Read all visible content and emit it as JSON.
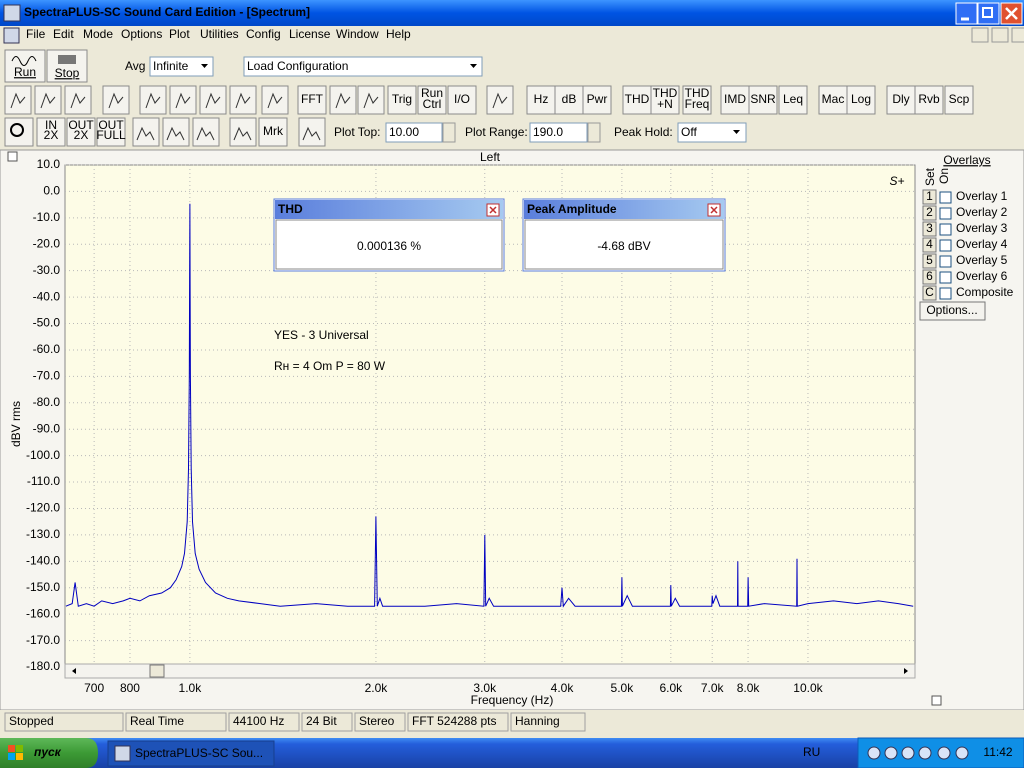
{
  "window": {
    "title": "SpectraPLUS-SC Sound Card Edition - [Spectrum]"
  },
  "menu": [
    "File",
    "Edit",
    "Mode",
    "Options",
    "Plot",
    "Utilities",
    "Config",
    "License",
    "Window",
    "Help"
  ],
  "toolbar1": {
    "run": "Run",
    "stop": "Stop",
    "avg_label": "Avg",
    "avg_value": "Infinite",
    "config": "Load Configuration"
  },
  "toolbar2": [
    [
      "FFT"
    ],
    [
      "Trig"
    ],
    [
      "Run",
      "Ctrl"
    ],
    [
      "I/O"
    ],
    [
      "Hz"
    ],
    [
      "dB"
    ],
    [
      "Pwr"
    ],
    [
      "THD"
    ],
    [
      "THD",
      "+N"
    ],
    [
      "THD",
      "Freq"
    ],
    [
      "IMD"
    ],
    [
      "SNR"
    ],
    [
      "Leq"
    ],
    [
      "Mac"
    ],
    [
      "Log"
    ],
    [
      "Dly"
    ],
    [
      "Rvb"
    ],
    [
      "Scp"
    ]
  ],
  "toolbar3": {
    "zoom": [
      [
        "IN",
        "2X"
      ],
      [
        "OUT",
        "2X"
      ],
      [
        "OUT",
        "FULL"
      ]
    ],
    "marker": "Mrk",
    "plot_top_label": "Plot Top:",
    "plot_top": "10.00",
    "plot_range_label": "Plot Range:",
    "plot_range": "190.0",
    "peak_hold_label": "Peak Hold:",
    "peak_hold": "Off"
  },
  "chart_data": {
    "type": "line",
    "title": "Left",
    "xlabel": "Frequency (Hz)",
    "ylabel": "dBV rms",
    "logo": "S+",
    "annotations": [
      "YES - 3 Universal",
      "Rн = 4 Om   P = 80 W"
    ],
    "xscale": "log",
    "grid": true,
    "xlim": [
      628,
      14900
    ],
    "ylim": [
      -180,
      10
    ],
    "xticks": [
      700,
      800,
      {
        "value": 1000,
        "label": "1.0k"
      },
      {
        "value": 2000,
        "label": "2.0k"
      },
      {
        "value": 3000,
        "label": "3.0k"
      },
      {
        "value": 4000,
        "label": "4.0k"
      },
      {
        "value": 5000,
        "label": "5.0k"
      },
      {
        "value": 6000,
        "label": "6.0k"
      },
      {
        "value": 7000,
        "label": "7.0k"
      },
      {
        "value": 8000,
        "label": "8.0k"
      },
      {
        "value": 10000,
        "label": "10.0k"
      }
    ],
    "yticks": [
      {
        "value": 10,
        "label": "10.0"
      },
      {
        "value": 0,
        "label": "0.0"
      },
      {
        "value": -10,
        "label": "-10.0"
      },
      {
        "value": -20,
        "label": "-20.0"
      },
      {
        "value": -30,
        "label": "-30.0"
      },
      {
        "value": -40,
        "label": "-40.0"
      },
      {
        "value": -50,
        "label": "-50.0"
      },
      {
        "value": -60,
        "label": "-60.0"
      },
      {
        "value": -70,
        "label": "-70.0"
      },
      {
        "value": -80,
        "label": "-80.0"
      },
      {
        "value": -90,
        "label": "-90.0"
      },
      {
        "value": -100,
        "label": "-100.0"
      },
      {
        "value": -110,
        "label": "-110.0"
      },
      {
        "value": -120,
        "label": "-120.0"
      },
      {
        "value": -130,
        "label": "-130.0"
      },
      {
        "value": -140,
        "label": "-140.0"
      },
      {
        "value": -150,
        "label": "-150.0"
      },
      {
        "value": -160,
        "label": "-160.0"
      },
      {
        "value": -170,
        "label": "-170.0"
      },
      {
        "value": -180,
        "label": "-180.0"
      }
    ],
    "series": [
      {
        "color": "#0000c0",
        "x": [
          630,
          645,
          652,
          660,
          680,
          700,
          720,
          750,
          780,
          800,
          830,
          860,
          900,
          930,
          950,
          970,
          980,
          990,
          995,
          998,
          999,
          1000,
          1001,
          1002,
          1005,
          1010,
          1020,
          1035,
          1060,
          1100,
          1150,
          1200,
          1300,
          1400,
          1600,
          1800,
          1990,
          2000,
          2010,
          2030,
          2050,
          2400,
          2700,
          2990,
          3000,
          3010,
          3050,
          3100,
          3600,
          3980,
          4000,
          4020,
          4100,
          4200,
          4990,
          5000,
          5010,
          5100,
          5200,
          5990,
          6000,
          6010,
          6100,
          6200,
          6990,
          7000,
          7020,
          7100,
          7200,
          7690,
          7700,
          7710,
          7990,
          8000,
          8020,
          8500,
          9590,
          9600,
          9610,
          10000,
          11000,
          12000,
          13000,
          14000,
          14800
        ],
        "values": [
          -157,
          -156,
          -148,
          -157,
          -156,
          -157,
          -155,
          -156,
          -155,
          -154,
          -155,
          -153,
          -152,
          -150,
          -147,
          -142,
          -137,
          -125,
          -105,
          -70,
          -34,
          -4.68,
          -34,
          -70,
          -105,
          -125,
          -137,
          -143,
          -148,
          -152,
          -154,
          -155,
          -156,
          -157,
          -156,
          -157,
          -157,
          -123,
          -157,
          -154,
          -157,
          -157,
          -156,
          -157,
          -130,
          -157,
          -154,
          -157,
          -157,
          -157,
          -150,
          -157,
          -154,
          -157,
          -157,
          -146,
          -157,
          -153,
          -157,
          -157,
          -149,
          -157,
          -154,
          -157,
          -157,
          -153,
          -156,
          -153,
          -157,
          -157,
          -140,
          -157,
          -157,
          -146,
          -157,
          -156,
          -157,
          -139,
          -157,
          -156,
          -155,
          -156,
          -155,
          -156,
          -157
        ]
      }
    ]
  },
  "readouts": [
    {
      "title": "THD",
      "value": "0.000136 %"
    },
    {
      "title": "Peak Amplitude",
      "value": "-4.68 dBV"
    }
  ],
  "overlays": {
    "title": "Overlays",
    "set_label": "Set",
    "on_label": "On",
    "options": "Options...",
    "items": [
      {
        "key": "1",
        "name": "Overlay 1",
        "color": "#228b22"
      },
      {
        "key": "2",
        "name": "Overlay 2",
        "color": "#20b2aa"
      },
      {
        "key": "3",
        "name": "Overlay 3",
        "color": "#8b0050"
      },
      {
        "key": "4",
        "name": "Overlay 4",
        "color": "#e000e0"
      },
      {
        "key": "5",
        "name": "Overlay 5",
        "color": "#806000"
      },
      {
        "key": "6",
        "name": "Overlay 6",
        "color": "#f08040"
      },
      {
        "key": "C",
        "name": "Composite",
        "color": "#000000"
      }
    ]
  },
  "status_bar": [
    "Stopped",
    "Real Time",
    "44100 Hz",
    "24 Bit",
    "Stereo",
    "FFT 524288 pts",
    "Hanning"
  ],
  "taskbar": {
    "start": "пуск",
    "task": "SpectraPLUS-SC Sou...",
    "lang": "RU",
    "clock": "11:42"
  }
}
